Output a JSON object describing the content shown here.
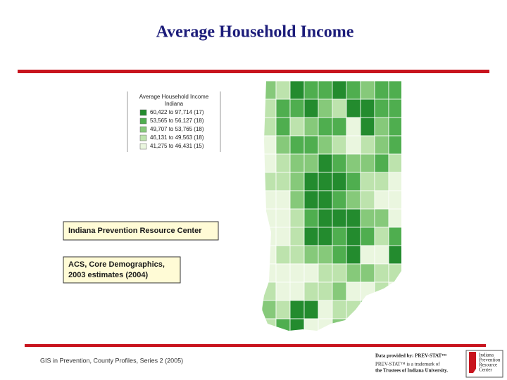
{
  "title": "Average Household Income",
  "legend": {
    "title": "Average Household Income",
    "subtitle": "Indiana",
    "classes": [
      {
        "label": "60,422 to 97,714 (17)",
        "color": "#238b2e"
      },
      {
        "label": "53,565 to 56,127 (18)",
        "color": "#4fae4f"
      },
      {
        "label": "49,707 to 53,765 (18)",
        "color": "#86c97a"
      },
      {
        "label": "46,131 to 49,563 (18)",
        "color": "#bde3ad"
      },
      {
        "label": "41,275 to 46,431 (15)",
        "color": "#eaf6df"
      }
    ]
  },
  "source_boxes": [
    "Indiana Prevention Resource Center",
    "ACS, Core Demographics,",
    "2003 estimates (2004)"
  ],
  "footer": "GIS in Prevention, County Profiles, Series 2 (2005)",
  "credits": {
    "line1": "Data provided by: PREV-STAT™",
    "line2": "PREV-STAT™ is a trademark of",
    "line3": "the Trustees of Indiana University.",
    "logo": [
      "Indiana",
      "Prevention",
      "Resource",
      "Center"
    ]
  }
}
